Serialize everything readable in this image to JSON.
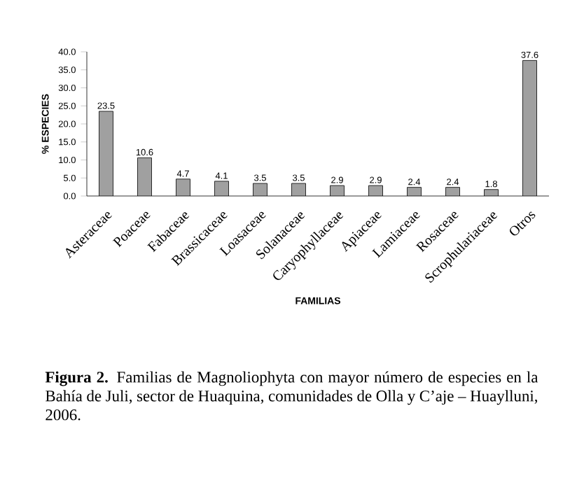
{
  "chart_data": {
    "type": "bar",
    "xlabel": "FAMILIAS",
    "ylabel": "% ESPECIES",
    "categories": [
      "Asteraceae",
      "Poaceae",
      "Fabaceae",
      "Brassicaceae",
      "Loasaceae",
      "Solanaceae",
      "Caryophyllaceae",
      "Apiaceae",
      "Lamiaceae",
      "Rosaceae",
      "Scrophulariaceae",
      "Otros"
    ],
    "values": [
      23.5,
      10.6,
      4.7,
      4.1,
      3.5,
      3.5,
      2.9,
      2.9,
      2.4,
      2.4,
      1.8,
      37.6
    ],
    "color": "#a0a0a0",
    "ylim": [
      0,
      40
    ],
    "yticks": [
      {
        "value": 0,
        "label": "0.0"
      },
      {
        "value": 5,
        "label": "5.0"
      },
      {
        "value": 10,
        "label": "10.0"
      },
      {
        "value": 15,
        "label": "15.0"
      },
      {
        "value": 20,
        "label": "20.0"
      },
      {
        "value": 25,
        "label": "25.0"
      },
      {
        "value": 30,
        "label": "30.0"
      },
      {
        "value": 35,
        "label": "35.0"
      },
      {
        "value": 40,
        "label": "40.0"
      }
    ],
    "data_labels": true,
    "grid": false,
    "annotations": [
      "**Figura 2.** Familias de Magnoliophyta con mayor número de especies en la Bahía de Juli, sector de Huaquina, comunidades de Olla y C’aje – Huaylluni, 2006."
    ]
  }
}
